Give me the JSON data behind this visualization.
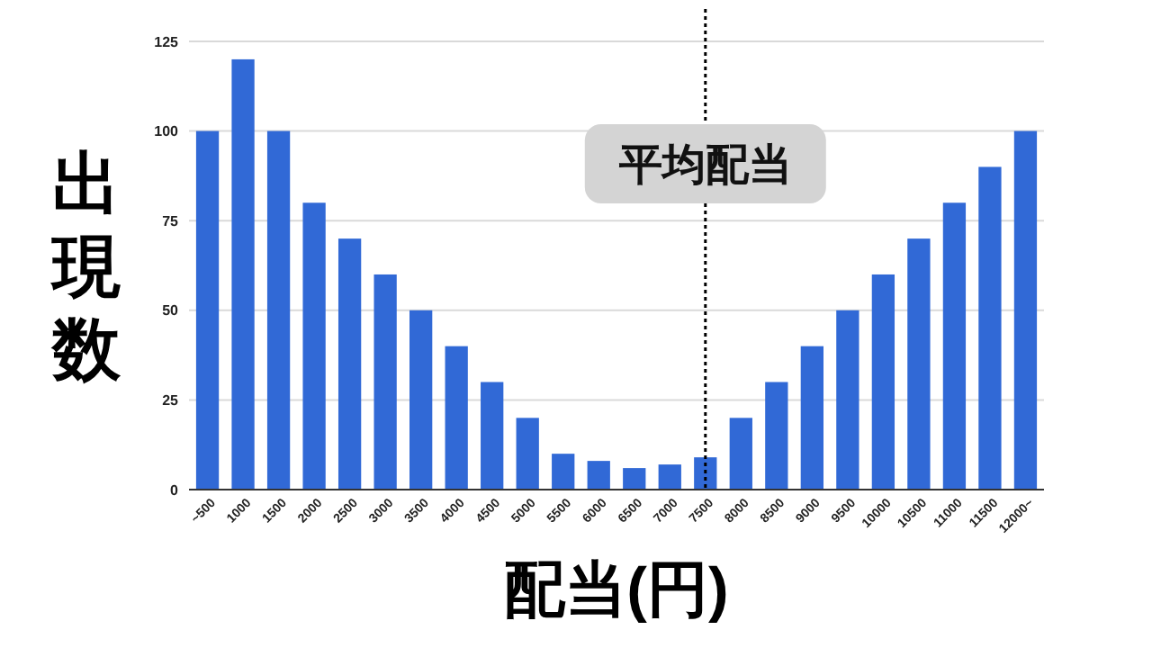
{
  "chart_data": {
    "type": "bar",
    "xlabel": "配当(円)",
    "ylabel": "出現数",
    "categories": [
      "~500",
      "1000",
      "1500",
      "2000",
      "2500",
      "3000",
      "3500",
      "4000",
      "4500",
      "5000",
      "5500",
      "6000",
      "6500",
      "7000",
      "7500",
      "8000",
      "8500",
      "9000",
      "9500",
      "10000",
      "10500",
      "11000",
      "11500",
      "12000~"
    ],
    "values": [
      100,
      120,
      100,
      80,
      70,
      60,
      50,
      40,
      30,
      20,
      10,
      8,
      6,
      7,
      9,
      20,
      30,
      40,
      50,
      60,
      70,
      80,
      90,
      100
    ],
    "color": "#3169d6",
    "ylim": [
      0,
      125
    ],
    "yticks": [
      0,
      25,
      50,
      75,
      100,
      125
    ],
    "grid": "y",
    "ref_lines": [
      {
        "axis": "x",
        "value": "7500",
        "label": "平均配当",
        "color": "#000000",
        "line_style": "dotted"
      }
    ]
  }
}
